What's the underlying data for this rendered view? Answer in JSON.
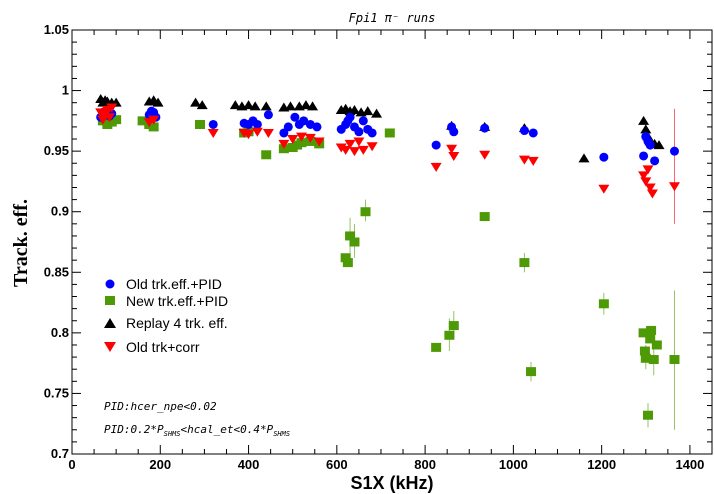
{
  "chart_data": {
    "type": "scatter",
    "title": "Fpi1 π⁻ runs",
    "xlabel": "S1X (kHz)",
    "ylabel": "Track. eff.",
    "xlim": [
      0,
      1450
    ],
    "ylim": [
      0.7,
      1.05
    ],
    "x_ticks": [
      "0",
      "200",
      "400",
      "600",
      "800",
      "1000",
      "1200",
      "1400"
    ],
    "y_ticks": [
      "0.7",
      "0.75",
      "0.8",
      "0.85",
      "0.9",
      "0.95",
      "1",
      "1.05"
    ],
    "grid": false,
    "legend_position": "bottom-left",
    "annotations": [
      "PID:hcer_npe<0.02",
      "PID:0.2*P_SHMS<hcal_et<0.4*P_SHMS"
    ],
    "series": [
      {
        "name": "Old trk.eff.+PID",
        "marker": "circle",
        "color": "#0000ff",
        "points": [
          [
            65,
            0.978
          ],
          [
            70,
            0.982
          ],
          [
            75,
            0.98
          ],
          [
            80,
            0.983
          ],
          [
            85,
            0.979
          ],
          [
            90,
            0.981
          ],
          [
            175,
            0.98
          ],
          [
            180,
            0.983
          ],
          [
            185,
            0.982
          ],
          [
            190,
            0.978
          ],
          [
            320,
            0.972
          ],
          [
            390,
            0.973
          ],
          [
            400,
            0.972
          ],
          [
            410,
            0.975
          ],
          [
            420,
            0.972
          ],
          [
            445,
            0.98
          ],
          [
            480,
            0.965
          ],
          [
            490,
            0.97
          ],
          [
            505,
            0.978
          ],
          [
            515,
            0.972
          ],
          [
            525,
            0.975
          ],
          [
            540,
            0.972
          ],
          [
            555,
            0.97
          ],
          [
            610,
            0.968
          ],
          [
            620,
            0.972
          ],
          [
            625,
            0.975
          ],
          [
            630,
            0.978
          ],
          [
            640,
            0.97
          ],
          [
            650,
            0.966
          ],
          [
            660,
            0.975
          ],
          [
            670,
            0.968
          ],
          [
            680,
            0.965
          ],
          [
            825,
            0.955
          ],
          [
            860,
            0.97
          ],
          [
            865,
            0.966
          ],
          [
            935,
            0.969
          ],
          [
            1025,
            0.967
          ],
          [
            1045,
            0.965
          ],
          [
            1205,
            0.945
          ],
          [
            1295,
            0.946
          ],
          [
            1300,
            0.962
          ],
          [
            1305,
            0.958
          ],
          [
            1310,
            0.955
          ],
          [
            1320,
            0.942
          ],
          [
            1365,
            0.95
          ]
        ]
      },
      {
        "name": "New trk.eff.+PID",
        "marker": "square",
        "color": "#4e9a06",
        "points": [
          [
            70,
            0.975
          ],
          [
            80,
            0.972
          ],
          [
            90,
            0.974
          ],
          [
            100,
            0.976
          ],
          [
            160,
            0.975
          ],
          [
            175,
            0.972
          ],
          [
            185,
            0.97
          ],
          [
            290,
            0.972
          ],
          [
            390,
            0.965
          ],
          [
            400,
            0.966
          ],
          [
            440,
            0.947
          ],
          [
            480,
            0.952
          ],
          [
            500,
            0.953
          ],
          [
            510,
            0.955
          ],
          [
            520,
            0.957
          ],
          [
            540,
            0.958
          ],
          [
            560,
            0.956
          ],
          [
            620,
            0.862
          ],
          [
            625,
            0.858
          ],
          [
            630,
            0.88
          ],
          [
            640,
            0.875
          ],
          [
            665,
            0.9
          ],
          [
            720,
            0.965
          ],
          [
            825,
            0.788
          ],
          [
            855,
            0.798
          ],
          [
            865,
            0.806
          ],
          [
            935,
            0.896
          ],
          [
            1025,
            0.858
          ],
          [
            1040,
            0.768
          ],
          [
            1205,
            0.824
          ],
          [
            1295,
            0.8
          ],
          [
            1298,
            0.785
          ],
          [
            1300,
            0.779
          ],
          [
            1305,
            0.732
          ],
          [
            1310,
            0.795
          ],
          [
            1312,
            0.802
          ],
          [
            1318,
            0.778
          ],
          [
            1325,
            0.79
          ],
          [
            1365,
            0.778
          ]
        ],
        "error_bars": [
          [
            630,
            0.865,
            0.895
          ],
          [
            640,
            0.862,
            0.89
          ],
          [
            665,
            0.892,
            0.91
          ],
          [
            855,
            0.785,
            0.812
          ],
          [
            865,
            0.795,
            0.818
          ],
          [
            1025,
            0.85,
            0.866
          ],
          [
            1040,
            0.76,
            0.776
          ],
          [
            1205,
            0.815,
            0.833
          ],
          [
            1300,
            0.77,
            0.79
          ],
          [
            1305,
            0.722,
            0.742
          ],
          [
            1318,
            0.765,
            0.79
          ],
          [
            1365,
            0.72,
            0.835
          ]
        ]
      },
      {
        "name": "Replay 4 trk. eff.",
        "marker": "triangle-up",
        "color": "#000000",
        "points": [
          [
            65,
            0.993
          ],
          [
            70,
            0.99
          ],
          [
            75,
            0.992
          ],
          [
            80,
            0.991
          ],
          [
            90,
            0.99
          ],
          [
            100,
            0.99
          ],
          [
            175,
            0.991
          ],
          [
            185,
            0.992
          ],
          [
            195,
            0.99
          ],
          [
            280,
            0.99
          ],
          [
            295,
            0.988
          ],
          [
            370,
            0.988
          ],
          [
            385,
            0.987
          ],
          [
            400,
            0.988
          ],
          [
            415,
            0.987
          ],
          [
            440,
            0.987
          ],
          [
            480,
            0.986
          ],
          [
            495,
            0.987
          ],
          [
            515,
            0.987
          ],
          [
            530,
            0.988
          ],
          [
            545,
            0.987
          ],
          [
            610,
            0.984
          ],
          [
            620,
            0.985
          ],
          [
            630,
            0.983
          ],
          [
            640,
            0.984
          ],
          [
            655,
            0.982
          ],
          [
            670,
            0.983
          ],
          [
            690,
            0.981
          ],
          [
            860,
            0.971
          ],
          [
            935,
            0.97
          ],
          [
            1025,
            0.969
          ],
          [
            1160,
            0.944
          ],
          [
            1295,
            0.975
          ],
          [
            1300,
            0.968
          ],
          [
            1305,
            0.962
          ],
          [
            1310,
            0.958
          ],
          [
            1320,
            0.956
          ],
          [
            1330,
            0.955
          ]
        ]
      },
      {
        "name": "Old trk+corr",
        "marker": "triangle-down",
        "color": "#ff0000",
        "points": [
          [
            65,
            0.982
          ],
          [
            70,
            0.976
          ],
          [
            75,
            0.98
          ],
          [
            80,
            0.984
          ],
          [
            85,
            0.978
          ],
          [
            90,
            0.986
          ],
          [
            175,
            0.974
          ],
          [
            185,
            0.976
          ],
          [
            320,
            0.965
          ],
          [
            390,
            0.965
          ],
          [
            400,
            0.964
          ],
          [
            420,
            0.966
          ],
          [
            445,
            0.965
          ],
          [
            480,
            0.956
          ],
          [
            500,
            0.96
          ],
          [
            520,
            0.962
          ],
          [
            540,
            0.961
          ],
          [
            560,
            0.958
          ],
          [
            610,
            0.953
          ],
          [
            620,
            0.951
          ],
          [
            630,
            0.956
          ],
          [
            640,
            0.95
          ],
          [
            650,
            0.958
          ],
          [
            660,
            0.951
          ],
          [
            680,
            0.954
          ],
          [
            825,
            0.937
          ],
          [
            860,
            0.952
          ],
          [
            865,
            0.946
          ],
          [
            935,
            0.947
          ],
          [
            1025,
            0.943
          ],
          [
            1045,
            0.942
          ],
          [
            1205,
            0.919
          ],
          [
            1295,
            0.93
          ],
          [
            1300,
            0.925
          ],
          [
            1305,
            0.935
          ],
          [
            1310,
            0.92
          ],
          [
            1315,
            0.915
          ],
          [
            1365,
            0.921
          ]
        ],
        "error_bars": [
          [
            1365,
            0.89,
            0.985
          ]
        ]
      }
    ]
  }
}
